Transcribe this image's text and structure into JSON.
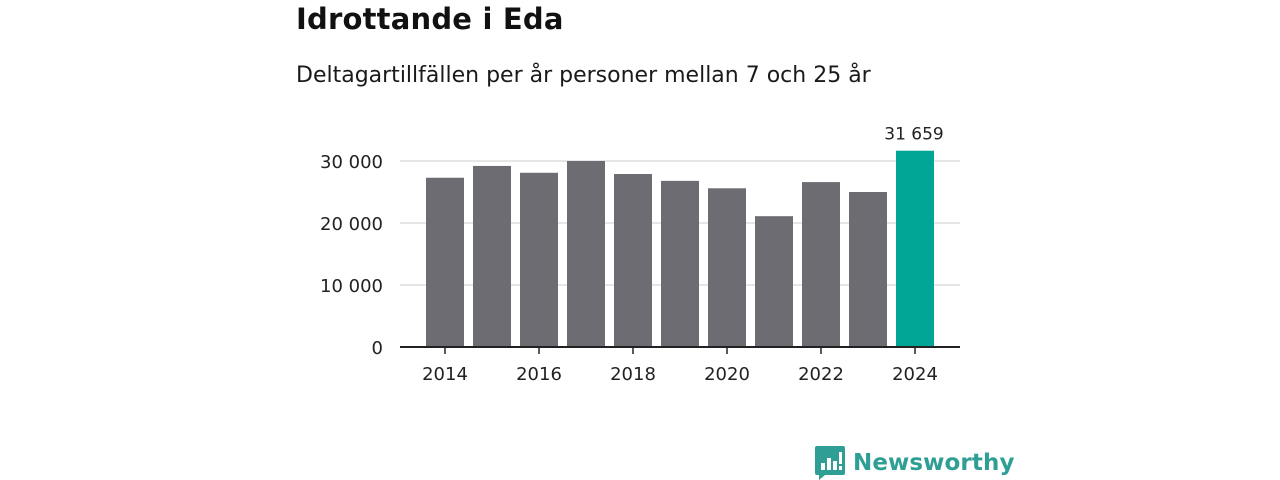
{
  "title": "Idrottande i Eda",
  "subtitle": "Deltagartillfällen per år personer mellan 7 och 25 år",
  "chart_data": {
    "type": "bar",
    "title": "Idrottande i Eda",
    "subtitle": "Deltagartillfällen per år personer mellan 7 och 25 år",
    "xlabel": "",
    "ylabel": "",
    "categories": [
      "2014",
      "2015",
      "2016",
      "2017",
      "2018",
      "2019",
      "2020",
      "2021",
      "2022",
      "2023",
      "2024"
    ],
    "values": [
      27300,
      29200,
      28100,
      30000,
      27900,
      26800,
      25600,
      21100,
      26600,
      25000,
      31659
    ],
    "highlight_index": 10,
    "highlight_label": "31 659",
    "x_tick_labels": [
      "2014",
      "2016",
      "2018",
      "2020",
      "2022",
      "2024"
    ],
    "y_ticks": [
      0,
      10000,
      20000,
      30000
    ],
    "y_tick_labels": [
      "0",
      "10 000",
      "20 000",
      "30 000"
    ],
    "ylim": [
      0,
      32000
    ],
    "grid": true,
    "colors": {
      "bar": "#6d6c72",
      "highlight": "#00a596",
      "grid": "#dedede",
      "axis": "#222222",
      "text": "#222222"
    }
  },
  "branding": {
    "name": "Newsworthy",
    "color": "#2f9f95"
  }
}
